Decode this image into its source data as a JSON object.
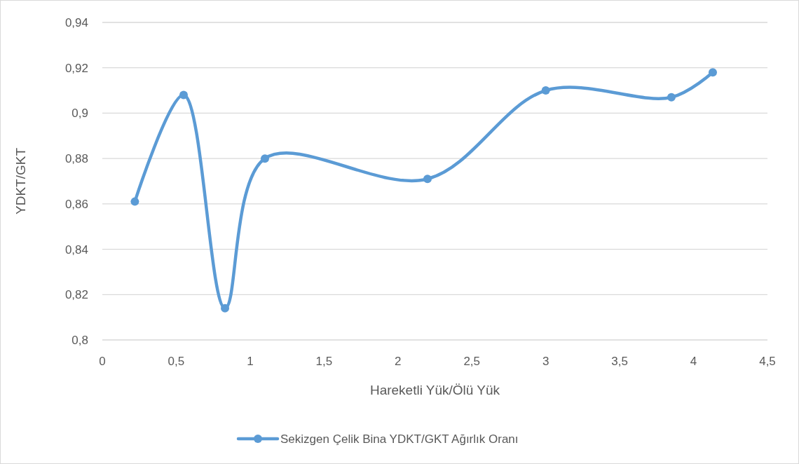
{
  "chart_data": {
    "type": "line",
    "xlabel": "Hareketli Yük/Ölü Yük",
    "ylabel": "YDKT/GKT",
    "x": [
      0.22,
      0.55,
      0.83,
      1.1,
      2.2,
      3,
      3.85,
      4.13
    ],
    "series": [
      {
        "name": "Sekizgen Çelik Bina YDKT/GKT Ağırlık Oranı",
        "color": "#5b9bd5",
        "values": [
          0.861,
          0.908,
          0.814,
          0.88,
          0.871,
          0.91,
          0.907,
          0.918
        ]
      }
    ],
    "xlim": [
      0,
      4.5
    ],
    "xticks": [
      0,
      {
        "value": 0.5,
        "label": "0,5"
      },
      1,
      {
        "value": 1.5,
        "label": "1,5"
      },
      2,
      {
        "value": 2.5,
        "label": "2,5"
      },
      3,
      {
        "value": 3.5,
        "label": "3,5"
      },
      4,
      {
        "value": 4.5,
        "label": "4,5"
      }
    ],
    "ylim": [
      0.8,
      0.94
    ],
    "yticks": [
      {
        "value": 0.8,
        "label": "0,8"
      },
      {
        "value": 0.82,
        "label": "0,82"
      },
      {
        "value": 0.84,
        "label": "0,84"
      },
      {
        "value": 0.86,
        "label": "0,86"
      },
      {
        "value": 0.88,
        "label": "0,88"
      },
      {
        "value": 0.9,
        "label": "0,9"
      },
      {
        "value": 0.92,
        "label": "0,92"
      },
      {
        "value": 0.94,
        "label": "0,94"
      }
    ],
    "grid": "y",
    "legend": "bottom",
    "marker": "circle",
    "line_style": "solid"
  }
}
